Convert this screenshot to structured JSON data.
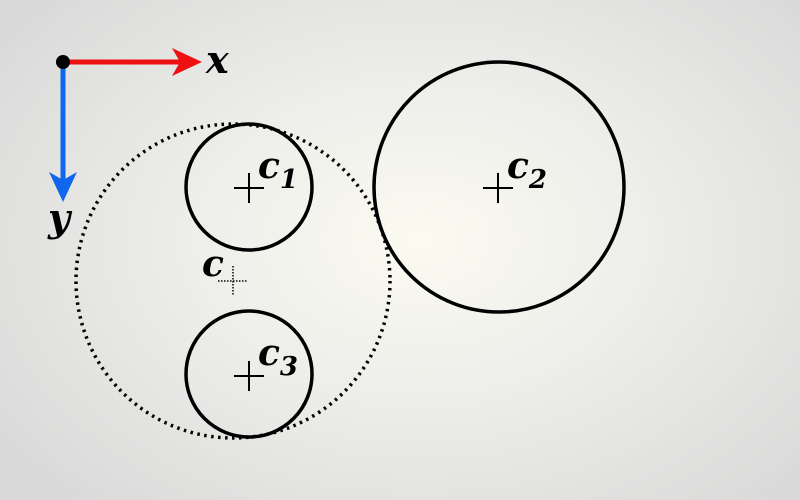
{
  "axes": {
    "x_label": "x",
    "y_label": "y",
    "x_color": "#ee1111",
    "y_color": "#1166ee",
    "origin_color": "#000000"
  },
  "circles": [
    {
      "id": "c1",
      "letter": "c",
      "subscript": "1",
      "style": "solid"
    },
    {
      "id": "c2",
      "letter": "c",
      "subscript": "2",
      "style": "solid"
    },
    {
      "id": "c3",
      "letter": "c",
      "subscript": "3",
      "style": "solid"
    },
    {
      "id": "c",
      "letter": "c",
      "subscript": "",
      "style": "dotted"
    }
  ]
}
